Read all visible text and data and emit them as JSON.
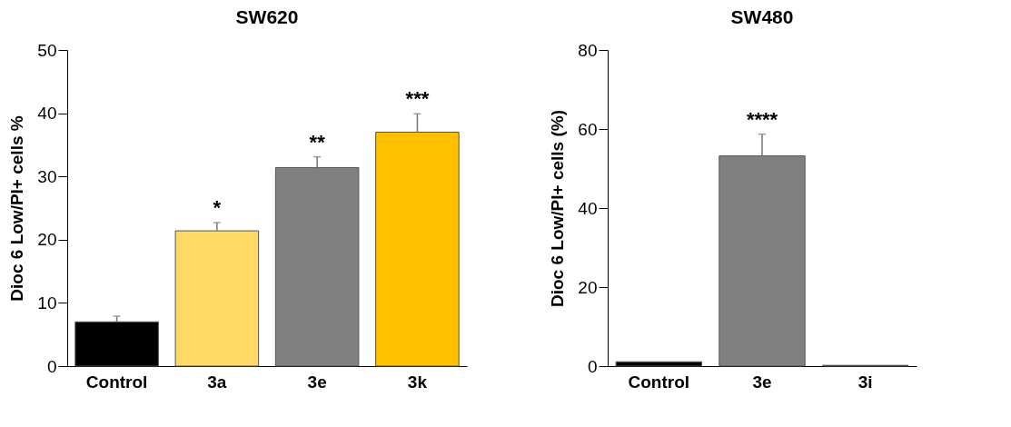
{
  "chart_data": [
    {
      "type": "bar",
      "title": "SW620",
      "ylabel": "Dioc 6 Low/PI+ cells %",
      "categories": [
        "Control",
        "3a",
        "3e",
        "3k"
      ],
      "values": [
        7.0,
        21.4,
        31.4,
        37.0
      ],
      "colors": [
        "#000000",
        "#ffd966",
        "#808080",
        "#ffc000"
      ],
      "errors": [
        [
          7.0,
          7.9
        ],
        [
          21.4,
          22.7
        ],
        [
          31.4,
          33.1
        ],
        [
          37.0,
          39.9
        ]
      ],
      "ylim": [
        0,
        50
      ],
      "yticks": [
        0,
        10,
        20,
        30,
        40,
        50
      ],
      "annotations": [
        {
          "text": "*",
          "x": "3a",
          "y": 22.7
        },
        {
          "text": "**",
          "x": "3e",
          "y": 33.1
        },
        {
          "text": "***",
          "x": "3k",
          "y": 39.9
        }
      ]
    },
    {
      "type": "bar",
      "title": "SW480",
      "ylabel": "Dioc 6 Low/PI+ cells (%)",
      "categories": [
        "Control",
        "3e",
        "3i"
      ],
      "values": [
        1.1,
        53.2,
        0.2
      ],
      "colors": [
        "#000000",
        "#808080",
        "#000000"
      ],
      "errors": [
        null,
        [
          53.2,
          58.7
        ],
        null
      ],
      "ylim": [
        0,
        80
      ],
      "yticks": [
        0,
        20,
        40,
        60,
        80
      ],
      "annotations": [
        {
          "text": "****",
          "x": "3e",
          "y": 58.7
        }
      ]
    }
  ]
}
